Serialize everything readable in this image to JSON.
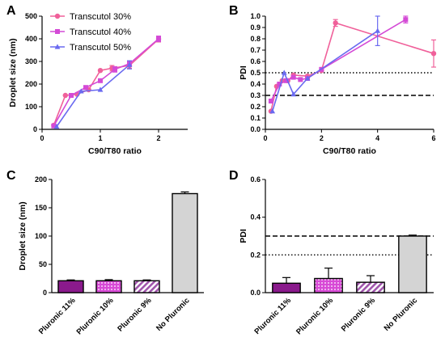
{
  "colors": {
    "transcutol_30": "#f0609a",
    "transcutol_40": "#d44ad6",
    "transcutol_50": "#6a6af0",
    "pluronic_11": "#8a1a8c",
    "pluronic_10": "#d84ad6",
    "pluronic_9": "#b066b8",
    "no_pluronic": "#d4d4d4"
  },
  "chart_data": [
    {
      "panel": "A",
      "type": "line",
      "xlabel": "C90/T80 ratio",
      "ylabel": "Droplet size (nm)",
      "xlim": [
        0,
        2.5
      ],
      "ylim": [
        0,
        500
      ],
      "xticks": [
        "0",
        "1",
        "2"
      ],
      "yticks": [
        "0",
        "100",
        "200",
        "300",
        "400",
        "500"
      ],
      "legend_position": "top-left",
      "series": [
        {
          "name": "Transcutol 30%",
          "color_key": "transcutol_30",
          "marker": "circle",
          "x": [
            0.2,
            0.4,
            0.6,
            0.8,
            1.0,
            1.2,
            1.5,
            2.0
          ],
          "y": [
            18,
            150,
            155,
            175,
            260,
            270,
            282,
            398
          ],
          "err": [
            0,
            0,
            0,
            0,
            0,
            12,
            12,
            12
          ]
        },
        {
          "name": "Transcutol 40%",
          "color_key": "transcutol_40",
          "marker": "square",
          "x": [
            0.2,
            0.5,
            0.75,
            1.0,
            1.25,
            1.5,
            2.0
          ],
          "y": [
            15,
            150,
            185,
            215,
            265,
            290,
            400
          ],
          "err": [
            0,
            0,
            0,
            0,
            12,
            12,
            12
          ]
        },
        {
          "name": "Transcutol 50%",
          "color_key": "transcutol_50",
          "marker": "triangle",
          "x": [
            0.25,
            0.67,
            1.0,
            1.5
          ],
          "y": [
            12,
            168,
            175,
            285
          ],
          "err": [
            0,
            0,
            0,
            18
          ]
        }
      ]
    },
    {
      "panel": "B",
      "type": "line",
      "xlabel": "C90/T80 ratio",
      "ylabel": "PDI",
      "xlim": [
        0,
        6
      ],
      "ylim": [
        0,
        1.0
      ],
      "xticks": [
        "0",
        "2",
        "4",
        "6"
      ],
      "yticks": [
        "0.0",
        "0.1",
        "0.2",
        "0.3",
        "0.4",
        "0.5",
        "0.6",
        "0.7",
        "0.8",
        "0.9",
        "1.0"
      ],
      "reference_lines": [
        {
          "y": 0.5,
          "style": "dotted"
        },
        {
          "y": 0.3,
          "style": "dashed"
        }
      ],
      "series": [
        {
          "name": "Transcutol 30%",
          "color_key": "transcutol_30",
          "marker": "circle",
          "x": [
            0.2,
            0.4,
            0.6,
            0.8,
            1.0,
            1.5,
            2.0,
            2.5,
            6.0
          ],
          "y": [
            0.16,
            0.38,
            0.43,
            0.43,
            0.48,
            0.47,
            0.52,
            0.94,
            0.67
          ],
          "err": [
            0,
            0,
            0,
            0,
            0,
            0,
            0,
            0.03,
            0.12
          ]
        },
        {
          "name": "Transcutol 40%",
          "color_key": "transcutol_40",
          "marker": "square",
          "x": [
            0.2,
            0.5,
            0.75,
            1.0,
            1.25,
            1.5,
            2.0,
            5.0
          ],
          "y": [
            0.25,
            0.4,
            0.43,
            0.46,
            0.44,
            0.45,
            0.53,
            0.97
          ],
          "err": [
            0,
            0,
            0,
            0,
            0,
            0,
            0,
            0.03
          ]
        },
        {
          "name": "Transcutol 50%",
          "color_key": "transcutol_50",
          "marker": "triangle",
          "x": [
            0.25,
            0.67,
            1.0,
            1.5,
            4.0
          ],
          "y": [
            0.16,
            0.5,
            0.31,
            0.45,
            0.87
          ],
          "err": [
            0,
            0,
            0,
            0,
            0.13
          ]
        }
      ]
    },
    {
      "panel": "C",
      "type": "bar",
      "ylabel": "Droplet size (nm)",
      "ylim": [
        0,
        200
      ],
      "yticks": [
        "0",
        "50",
        "100",
        "150",
        "200"
      ],
      "categories": [
        "Pluronic 11%",
        "Pluronic 10%",
        "Pluronic 9%",
        "No Pluronic"
      ],
      "values": [
        21,
        21,
        21,
        175
      ],
      "err": [
        1.5,
        2,
        1.5,
        3
      ],
      "bar_color_keys": [
        "pluronic_11",
        "pluronic_10",
        "pluronic_9",
        "no_pluronic"
      ],
      "patterns": [
        "solid",
        "dots",
        "stripes",
        "solid"
      ]
    },
    {
      "panel": "D",
      "type": "bar",
      "ylabel": "PDI",
      "ylim": [
        0,
        0.6
      ],
      "yticks": [
        "0.0",
        "0.2",
        "0.4",
        "0.6"
      ],
      "categories": [
        "Pluronic 11%",
        "Pluronic 10%",
        "Pluronic 9%",
        "No Pluronic"
      ],
      "values": [
        0.05,
        0.075,
        0.055,
        0.3
      ],
      "err": [
        0.03,
        0.055,
        0.035,
        0.005
      ],
      "bar_color_keys": [
        "pluronic_11",
        "pluronic_10",
        "pluronic_9",
        "no_pluronic"
      ],
      "patterns": [
        "solid",
        "dots",
        "stripes",
        "solid"
      ],
      "reference_lines": [
        {
          "y": 0.3,
          "style": "dashed"
        },
        {
          "y": 0.2,
          "style": "dotted"
        }
      ]
    }
  ]
}
